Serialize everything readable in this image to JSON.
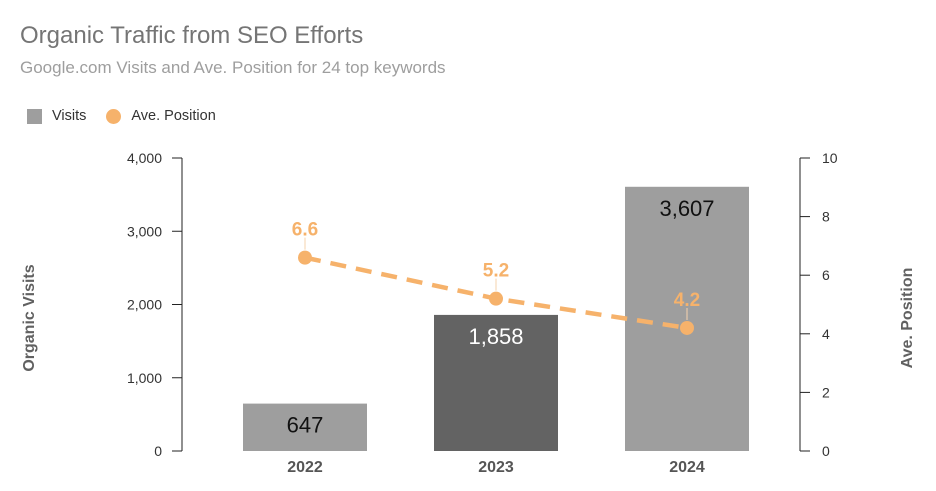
{
  "chart_data": {
    "type": "bar",
    "title": "Organic Traffic from SEO Efforts",
    "subtitle": "Google.com Visits and Ave. Position for 24 top keywords",
    "categories": [
      "2022",
      "2023",
      "2024"
    ],
    "series": [
      {
        "name": "Visits",
        "type": "bar",
        "axis": "left",
        "values": [
          647,
          1858,
          3607
        ],
        "value_labels": [
          "647",
          "1,858",
          "3,607"
        ],
        "color": "#9e9e9e",
        "bar_colors": [
          "#9e9e9e",
          "#636363",
          "#9e9e9e"
        ],
        "label_colors": [
          "#111111",
          "#ffffff",
          "#111111"
        ]
      },
      {
        "name": "Ave. Position",
        "type": "line",
        "axis": "right",
        "line_style": "dashed",
        "values": [
          6.6,
          5.2,
          4.2
        ],
        "value_labels": [
          "6.6",
          "5.2",
          "4.2"
        ],
        "color": "#f6b26b"
      }
    ],
    "ylabel": "Organic Visits",
    "ylabel_right": "Ave. Position",
    "xlabel": "",
    "ylim": [
      0,
      4000
    ],
    "ylim_right": [
      0,
      10
    ],
    "y_ticks": [
      0,
      1000,
      2000,
      3000,
      4000
    ],
    "y_tick_labels": [
      "0",
      "1,000",
      "2,000",
      "3,000",
      "4,000"
    ],
    "y_right_ticks": [
      0,
      2,
      4,
      6,
      8,
      10
    ],
    "y_right_tick_labels": [
      "0",
      "2",
      "4",
      "6",
      "8",
      "10"
    ],
    "grid": false,
    "legend": "top-left"
  },
  "legend": {
    "items": [
      {
        "label": "Visits",
        "color": "#9e9e9e",
        "shape": "square"
      },
      {
        "label": "Ave. Position",
        "color": "#f6b26b",
        "shape": "circle"
      }
    ]
  }
}
